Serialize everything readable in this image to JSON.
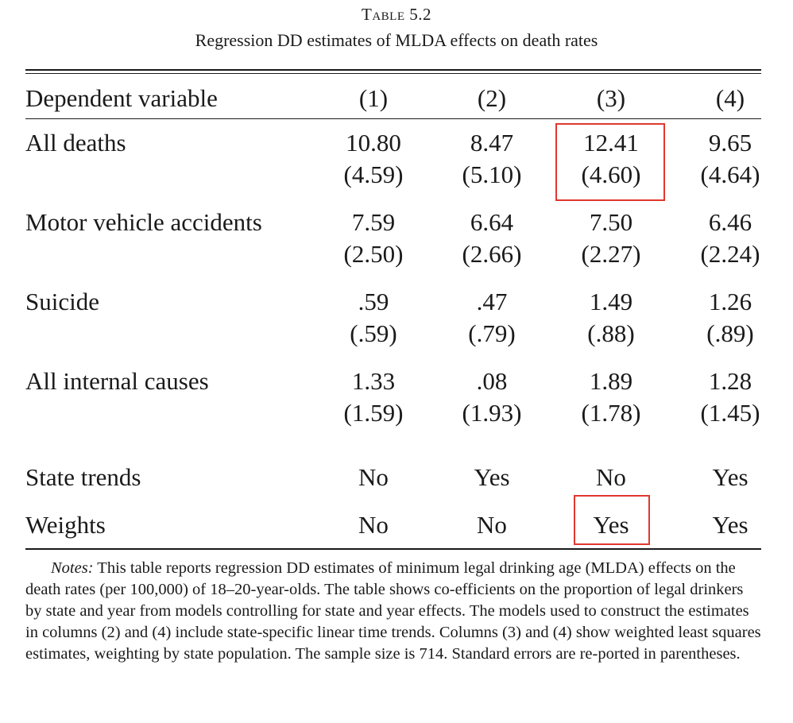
{
  "caption": {
    "label": "Table 5.2",
    "title": "Regression DD estimates of MLDA effects on death rates"
  },
  "header": {
    "dependent_variable": "Dependent variable",
    "columns": [
      "(1)",
      "(2)",
      "(3)",
      "(4)"
    ]
  },
  "rows": [
    {
      "label": "All deaths",
      "coef": [
        "10.80",
        "8.47",
        "12.41",
        "9.65"
      ],
      "se": [
        "(4.59)",
        "(5.10)",
        "(4.60)",
        "(4.64)"
      ]
    },
    {
      "label": "Motor vehicle accidents",
      "coef": [
        "7.59",
        "6.64",
        "7.50",
        "6.46"
      ],
      "se": [
        "(2.50)",
        "(2.66)",
        "(2.27)",
        "(2.24)"
      ]
    },
    {
      "label": "Suicide",
      "coef": [
        ".59",
        ".47",
        "1.49",
        "1.26"
      ],
      "se": [
        "(.59)",
        "(.79)",
        "(.88)",
        "(.89)"
      ]
    },
    {
      "label": "All internal causes",
      "coef": [
        "1.33",
        ".08",
        "1.89",
        "1.28"
      ],
      "se": [
        "(1.59)",
        "(1.93)",
        "(1.78)",
        "(1.45)"
      ]
    }
  ],
  "controls": [
    {
      "label": "State trends",
      "values": [
        "No",
        "Yes",
        "No",
        "Yes"
      ]
    },
    {
      "label": "Weights",
      "values": [
        "No",
        "No",
        "Yes",
        "Yes"
      ]
    }
  ],
  "highlight_color": "#e0382e",
  "notes": {
    "lead": "Notes:",
    "text": "This table reports regression DD estimates of minimum legal drinking age (MLDA) effects on the death rates (per 100,000) of 18–20-year-olds. The table shows co-efficients on the proportion of legal drinkers by state and year from models controlling for state and year effects. The models used to construct the estimates in columns (2) and (4) include state-specific linear time trends. Columns (3) and (4) show weighted least squares estimates, weighting by state population. The sample size is 714. Standard errors are re-ported in parentheses."
  }
}
